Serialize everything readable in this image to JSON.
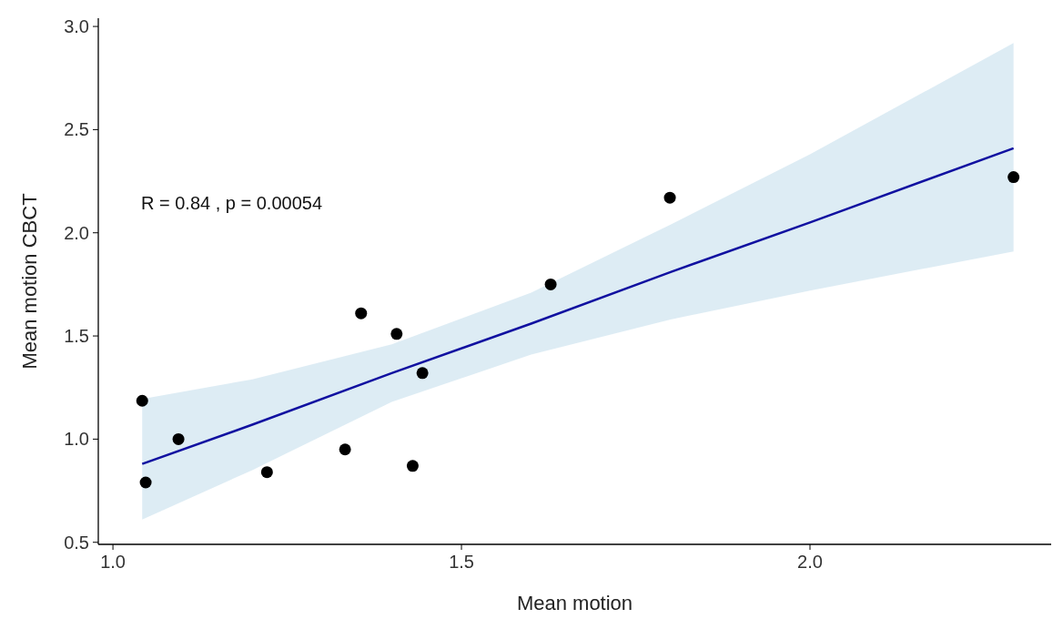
{
  "chart_data": {
    "type": "scatter",
    "xlabel": "Mean motion",
    "ylabel": "Mean motion CBCT",
    "xlim": [
      0.979,
      2.346
    ],
    "ylim": [
      0.49,
      3.04
    ],
    "xticks": [
      {
        "value": 1,
        "label": "1.0"
      },
      1.5,
      {
        "value": 2,
        "label": "2.0"
      }
    ],
    "yticks": [
      0.5,
      {
        "value": 1,
        "label": "1.0"
      },
      1.5,
      {
        "value": 2,
        "label": "2.0"
      },
      2.5,
      {
        "value": 3,
        "label": "3.0"
      }
    ],
    "grid": false,
    "annotations": [
      "R = 0.84 , p = 0.00054"
    ],
    "series": [
      {
        "type": "line",
        "color": "#1010a0",
        "x": [
          1.042,
          1.2,
          1.4,
          1.6,
          1.8,
          2.0,
          2.292
        ],
        "values": [
          0.88,
          1.07,
          1.32,
          1.56,
          1.81,
          2.05,
          2.41
        ],
        "lower": [
          0.61,
          0.85,
          1.18,
          1.41,
          1.58,
          1.72,
          1.91
        ],
        "upper": [
          1.195,
          1.29,
          1.46,
          1.71,
          2.04,
          2.38,
          2.92
        ]
      },
      {
        "marker": "circle",
        "color": "#000000",
        "x": [
          1.042,
          1.047,
          1.094,
          1.221,
          1.333,
          1.356,
          1.407,
          1.43,
          1.444,
          1.628,
          1.799,
          2.292
        ],
        "values": [
          1.186,
          0.79,
          1.0,
          0.84,
          0.95,
          1.61,
          1.51,
          0.87,
          1.32,
          1.75,
          2.17,
          2.27
        ]
      }
    ]
  }
}
